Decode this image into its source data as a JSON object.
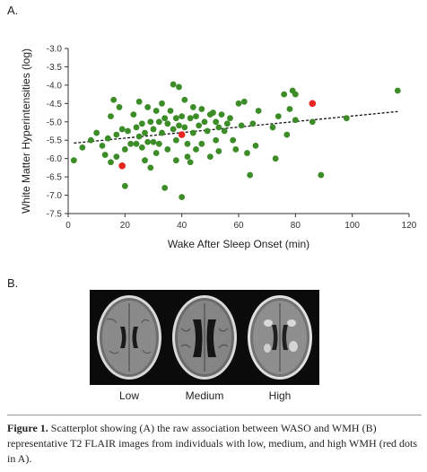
{
  "panel_a_label": "A.",
  "panel_b_label": "B.",
  "chart_data": {
    "type": "scatter",
    "xlabel": "Wake After Sleep Onset (min)",
    "ylabel": "White Matter Hyperintensities (log)",
    "xlim": [
      0,
      120
    ],
    "ylim": [
      -7.5,
      -3.0
    ],
    "xticks": [
      "0",
      "20",
      "40",
      "60",
      "80",
      "100",
      "120"
    ],
    "yticks": [
      "-3.0",
      "-3.5",
      "-4.0",
      "-4.5",
      "-5.0",
      "-5.5",
      "-6.0",
      "-6.5",
      "-7.0",
      "-7.5"
    ],
    "grid": false,
    "legend": "none",
    "trendline": {
      "style": "dashed",
      "color": "#111111",
      "x": [
        2,
        116
      ],
      "y": [
        -5.58,
        -4.72
      ]
    },
    "point_color": "#3c8c28",
    "highlight_color": "#e8261f",
    "points": [
      [
        2,
        -6.05
      ],
      [
        5,
        -5.7
      ],
      [
        8,
        -5.5
      ],
      [
        10,
        -5.3
      ],
      [
        12,
        -5.65
      ],
      [
        13,
        -5.9
      ],
      [
        14,
        -5.45
      ],
      [
        15,
        -4.85
      ],
      [
        15,
        -6.1
      ],
      [
        16,
        -4.4
      ],
      [
        17,
        -5.35
      ],
      [
        17,
        -5.95
      ],
      [
        18,
        -4.6
      ],
      [
        19,
        -5.2
      ],
      [
        20,
        -5.75
      ],
      [
        20,
        -6.75
      ],
      [
        21,
        -5.25
      ],
      [
        22,
        -5.6
      ],
      [
        23,
        -4.8
      ],
      [
        24,
        -5.15
      ],
      [
        24,
        -5.6
      ],
      [
        25,
        -4.45
      ],
      [
        25,
        -5.4
      ],
      [
        26,
        -5.05
      ],
      [
        26,
        -5.7
      ],
      [
        27,
        -5.3
      ],
      [
        27,
        -6.05
      ],
      [
        28,
        -4.6
      ],
      [
        28,
        -5.55
      ],
      [
        29,
        -5.0
      ],
      [
        29,
        -6.25
      ],
      [
        30,
        -5.2
      ],
      [
        30,
        -5.55
      ],
      [
        31,
        -4.7
      ],
      [
        31,
        -5.85
      ],
      [
        32,
        -5.0
      ],
      [
        32,
        -5.6
      ],
      [
        33,
        -4.5
      ],
      [
        33,
        -5.3
      ],
      [
        34,
        -4.9
      ],
      [
        34,
        -6.8
      ],
      [
        35,
        -5.05
      ],
      [
        35,
        -5.75
      ],
      [
        36,
        -4.7
      ],
      [
        37,
        -3.98
      ],
      [
        37,
        -5.2
      ],
      [
        38,
        -4.9
      ],
      [
        38,
        -5.5
      ],
      [
        38,
        -6.05
      ],
      [
        39,
        -4.05
      ],
      [
        39,
        -5.1
      ],
      [
        40,
        -4.85
      ],
      [
        40,
        -7.05
      ],
      [
        41,
        -4.4
      ],
      [
        41,
        -5.15
      ],
      [
        42,
        -5.6
      ],
      [
        42,
        -5.95
      ],
      [
        43,
        -4.9
      ],
      [
        43,
        -6.1
      ],
      [
        44,
        -4.6
      ],
      [
        44,
        -5.3
      ],
      [
        45,
        -4.85
      ],
      [
        45,
        -5.75
      ],
      [
        46,
        -5.1
      ],
      [
        47,
        -4.65
      ],
      [
        47,
        -5.6
      ],
      [
        48,
        -5.0
      ],
      [
        49,
        -5.25
      ],
      [
        50,
        -4.8
      ],
      [
        50,
        -5.95
      ],
      [
        51,
        -4.75
      ],
      [
        52,
        -5.0
      ],
      [
        52,
        -5.5
      ],
      [
        53,
        -5.15
      ],
      [
        53,
        -5.8
      ],
      [
        54,
        -4.8
      ],
      [
        55,
        -5.25
      ],
      [
        56,
        -5.05
      ],
      [
        57,
        -4.9
      ],
      [
        58,
        -5.5
      ],
      [
        59,
        -5.75
      ],
      [
        60,
        -4.5
      ],
      [
        61,
        -5.1
      ],
      [
        62,
        -4.45
      ],
      [
        63,
        -5.85
      ],
      [
        64,
        -6.45
      ],
      [
        65,
        -5.05
      ],
      [
        66,
        -5.65
      ],
      [
        67,
        -4.7
      ],
      [
        72,
        -5.15
      ],
      [
        73,
        -6.0
      ],
      [
        74,
        -4.85
      ],
      [
        76,
        -4.25
      ],
      [
        77,
        -5.35
      ],
      [
        78,
        -4.65
      ],
      [
        79,
        -4.15
      ],
      [
        80,
        -4.25
      ],
      [
        80,
        -4.95
      ],
      [
        86,
        -5.0
      ],
      [
        89,
        -6.45
      ],
      [
        98,
        -4.9
      ],
      [
        116,
        -4.15
      ]
    ],
    "highlighted_points": [
      [
        19,
        -6.2
      ],
      [
        40,
        -5.35
      ],
      [
        86,
        -4.5
      ]
    ]
  },
  "scans": [
    {
      "caption": "Low"
    },
    {
      "caption": "Medium"
    },
    {
      "caption": "High"
    }
  ],
  "caption": {
    "fig_label": "Figure 1.",
    "text": "Scatterplot showing (A) the raw association between WASO and WMH (B) representative T2 FLAIR images from individuals with low, medium, and high WMH (red dots in A)."
  }
}
